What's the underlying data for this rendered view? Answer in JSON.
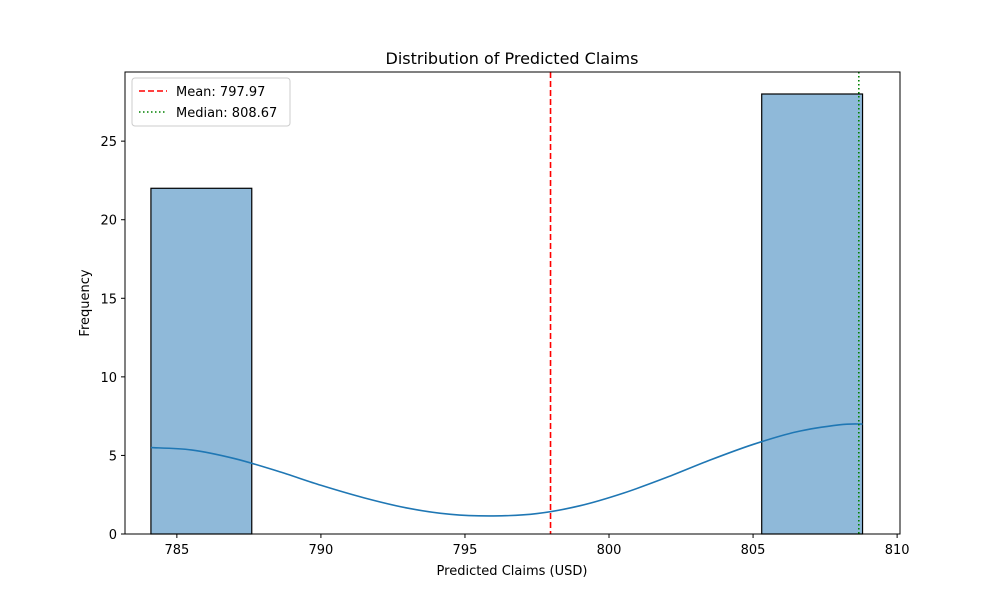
{
  "chart_data": {
    "type": "bar",
    "title": "Distribution of Predicted Claims",
    "xlabel": "Predicted Claims (USD)",
    "ylabel": "Frequency",
    "xlim": [
      783.2,
      810.1
    ],
    "ylim": [
      0,
      29.4
    ],
    "xticks": [
      785,
      790,
      795,
      800,
      805,
      810
    ],
    "yticks": [
      0,
      5,
      10,
      15,
      20,
      25
    ],
    "bins": [
      {
        "x0": 784.1,
        "x1": 787.6,
        "count": 22
      },
      {
        "x0": 787.6,
        "x1": 791.2,
        "count": 0
      },
      {
        "x0": 791.2,
        "x1": 794.7,
        "count": 0
      },
      {
        "x0": 794.7,
        "x1": 798.2,
        "count": 0
      },
      {
        "x0": 798.2,
        "x1": 801.7,
        "count": 0
      },
      {
        "x0": 801.7,
        "x1": 805.3,
        "count": 0
      },
      {
        "x0": 805.3,
        "x1": 808.8,
        "count": 28
      }
    ],
    "kde": {
      "x": [
        784.1,
        785.5,
        787,
        788.5,
        790,
        791.5,
        793,
        794.5,
        796,
        797.5,
        799,
        800.5,
        802,
        803.5,
        805,
        806.5,
        808,
        808.8
      ],
      "y": [
        5.5,
        5.35,
        4.8,
        4.0,
        3.1,
        2.3,
        1.65,
        1.25,
        1.15,
        1.3,
        1.8,
        2.6,
        3.6,
        4.7,
        5.7,
        6.5,
        6.95,
        7.0
      ]
    },
    "mean": 797.97,
    "median": 808.67,
    "legend": [
      {
        "label": "Mean: 797.97",
        "style": "dashed",
        "color": "#ff0000"
      },
      {
        "label": "Median: 808.67",
        "style": "dotted",
        "color": "#008000"
      }
    ],
    "legend_position": "top-left",
    "grid": false,
    "colors": {
      "bar_fill": "#8fb9d9",
      "bar_edge": "#000000",
      "kde": "#1f77b4",
      "mean": "#ff0000",
      "median": "#008000"
    }
  }
}
